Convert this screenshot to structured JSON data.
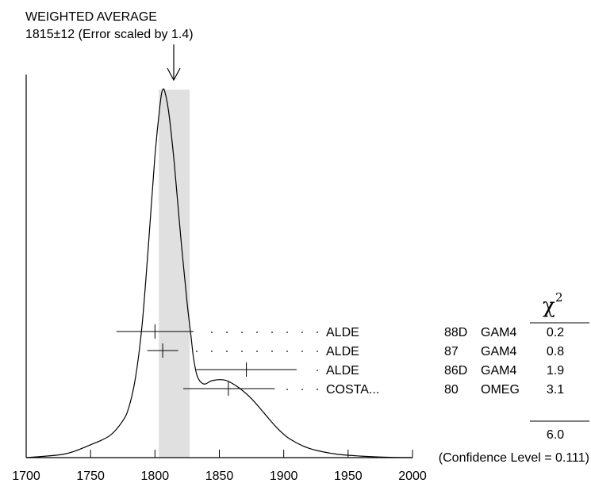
{
  "chart_data": {
    "type": "ideogram",
    "header": {
      "line1": "WEIGHTED AVERAGE",
      "line2": "1815±12 (Error scaled by 1.4)"
    },
    "weighted_average": {
      "value": 1815,
      "error": 12,
      "error_scale": 1.4
    },
    "band": [
      1803,
      1827
    ],
    "xlim": [
      1700,
      2000
    ],
    "x_ticks": [
      1700,
      1750,
      1800,
      1850,
      1900,
      1950,
      2000
    ],
    "x_tick_labels": [
      "1700",
      "1750",
      "1800",
      "1850",
      "1900",
      "1950",
      "2000"
    ],
    "measurements": [
      {
        "author": "ALDE",
        "year": "88D",
        "tech": "GAM4",
        "value": 1800,
        "low": 1770,
        "high": 1830,
        "chi2": "0.2"
      },
      {
        "author": "ALDE",
        "year": "87",
        "tech": "GAM4",
        "value": 1806,
        "low": 1794,
        "high": 1818,
        "chi2": "0.8"
      },
      {
        "author": "ALDE",
        "year": "86D",
        "tech": "GAM4",
        "value": 1871,
        "low": 1832,
        "high": 1910,
        "chi2": "1.9"
      },
      {
        "author": "COSTA...",
        "year": "80",
        "tech": "OMEG",
        "value": 1857,
        "low": 1822,
        "high": 1893,
        "chi2": "3.1"
      }
    ],
    "chi2_header": "χ",
    "chi2_header_sup": "2",
    "chi2_total": "6.0",
    "confidence_text": "(Confidence Level = 0.111)",
    "curve": [
      [
        1700,
        0.0
      ],
      [
        1730,
        0.01
      ],
      [
        1750,
        0.035
      ],
      [
        1765,
        0.06
      ],
      [
        1775,
        0.1
      ],
      [
        1780,
        0.14
      ],
      [
        1785,
        0.22
      ],
      [
        1790,
        0.36
      ],
      [
        1795,
        0.58
      ],
      [
        1800,
        0.82
      ],
      [
        1804,
        0.96
      ],
      [
        1806,
        1.0
      ],
      [
        1808,
        0.99
      ],
      [
        1811,
        0.93
      ],
      [
        1815,
        0.8
      ],
      [
        1820,
        0.6
      ],
      [
        1825,
        0.42
      ],
      [
        1828,
        0.33
      ],
      [
        1830,
        0.27
      ],
      [
        1833,
        0.22
      ],
      [
        1838,
        0.2
      ],
      [
        1845,
        0.21
      ],
      [
        1855,
        0.21
      ],
      [
        1865,
        0.19
      ],
      [
        1875,
        0.16
      ],
      [
        1885,
        0.12
      ],
      [
        1895,
        0.08
      ],
      [
        1905,
        0.05
      ],
      [
        1920,
        0.025
      ],
      [
        1940,
        0.01
      ],
      [
        1960,
        0.004
      ],
      [
        1980,
        0.001
      ],
      [
        2000,
        0.0
      ]
    ]
  }
}
